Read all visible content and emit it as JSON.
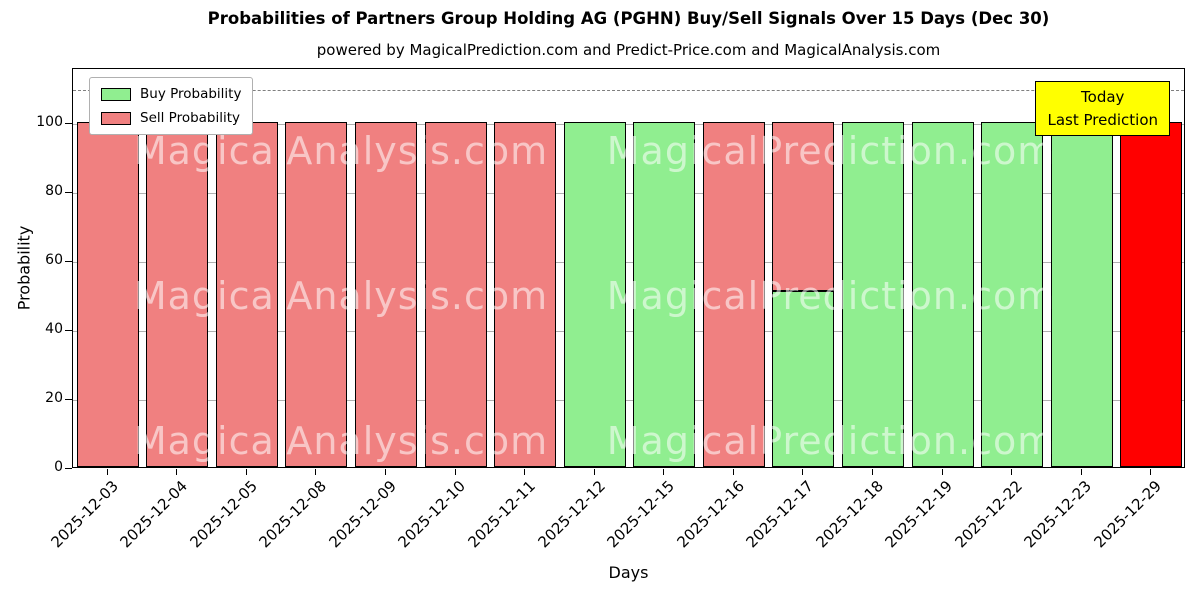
{
  "chart_data": {
    "type": "bar",
    "title": "Probabilities of Partners Group Holding AG (PGHN) Buy/Sell Signals Over 15 Days (Dec 30)",
    "subtitle": "powered by MagicalPrediction.com and Predict-Price.com and MagicalAnalysis.com",
    "xlabel": "Days",
    "ylabel": "Probability",
    "ylim": [
      0,
      116
    ],
    "yticks": [
      0,
      20,
      40,
      60,
      80,
      100
    ],
    "dashed_line_y": 110,
    "grid": true,
    "categories": [
      "2025-12-03",
      "2025-12-04",
      "2025-12-05",
      "2025-12-08",
      "2025-12-09",
      "2025-12-10",
      "2025-12-11",
      "2025-12-12",
      "2025-12-15",
      "2025-12-16",
      "2025-12-17",
      "2025-12-18",
      "2025-12-19",
      "2025-12-22",
      "2025-12-23",
      "2025-12-29"
    ],
    "series": [
      {
        "name": "Buy Probability",
        "color": "#90ee90",
        "values": [
          0,
          0,
          0,
          0,
          0,
          0,
          0,
          100,
          100,
          0,
          51,
          100,
          100,
          100,
          100,
          0
        ]
      },
      {
        "name": "Sell Probability",
        "color": "#f08080",
        "values": [
          100,
          100,
          100,
          100,
          100,
          100,
          100,
          0,
          0,
          100,
          49,
          0,
          0,
          0,
          0,
          0
        ]
      },
      {
        "name": "Today Last Prediction",
        "color": "#ff0000",
        "values": [
          0,
          0,
          0,
          0,
          0,
          0,
          0,
          0,
          0,
          0,
          0,
          0,
          0,
          0,
          0,
          100
        ]
      }
    ],
    "legend": {
      "position": "top-left",
      "entries": [
        {
          "label": "Buy Probability",
          "color": "#90ee90"
        },
        {
          "label": "Sell Probability",
          "color": "#f08080"
        }
      ]
    },
    "annotation": {
      "lines": [
        "Today",
        "Last Prediction"
      ],
      "bg": "#ffff00"
    },
    "watermarks": {
      "texts": [
        "MagicalAnalysis.com",
        "MagicalPrediction.com"
      ],
      "color": "rgba(255,255,255,0.55)"
    }
  }
}
